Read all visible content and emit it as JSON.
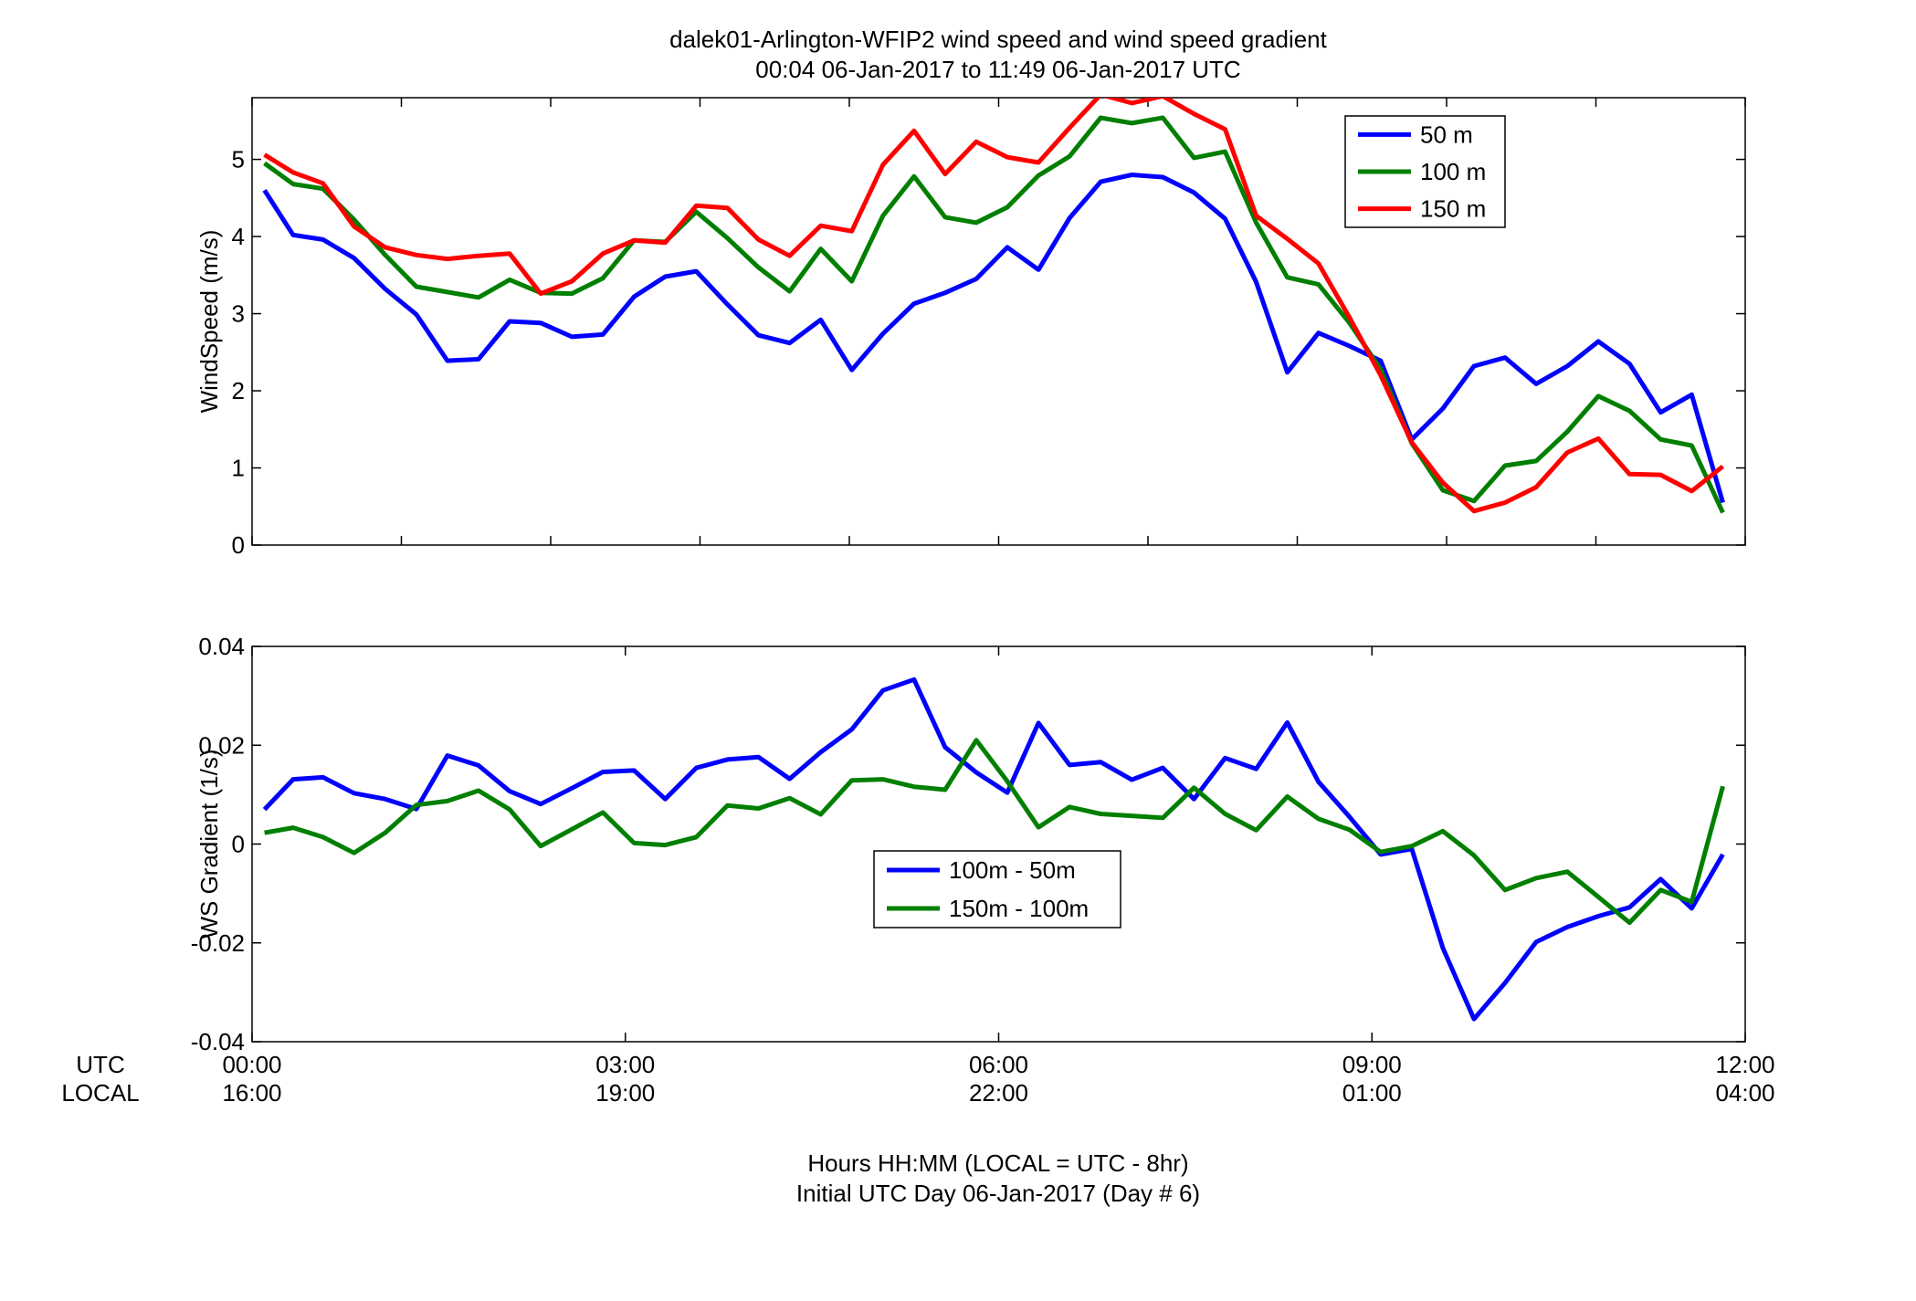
{
  "title_line1": "dalek01-Arlington-WFIP2  wind speed and wind speed gradient",
  "title_line2": "00:04 06-Jan-2017 to 11:49 06-Jan-2017  UTC",
  "row_labels": {
    "utc": "UTC",
    "local": "LOCAL"
  },
  "footer_line1": "Hours HH:MM  (LOCAL = UTC - 8hr)",
  "footer_line2": "Initial UTC Day 06-Jan-2017 (Day # 6)",
  "x_ticks_utc": [
    "00:00",
    "03:00",
    "06:00",
    "09:00",
    "12:00"
  ],
  "x_ticks_local": [
    "16:00",
    "19:00",
    "22:00",
    "01:00",
    "04:00"
  ],
  "chart_data": [
    {
      "type": "line",
      "ylabel": "WindSpeed (m/s)",
      "xlim": [
        0,
        12
      ],
      "ylim": [
        0,
        5.8
      ],
      "yticks": [
        "0",
        "1",
        "2",
        "3",
        "4",
        "5"
      ],
      "ytick_values": [
        0,
        1,
        2,
        3,
        4,
        5
      ],
      "x_minor_ticks": [
        0,
        1.2,
        2.4,
        3.6,
        4.8,
        6,
        7.2,
        8.4,
        9.6,
        10.8,
        12
      ],
      "legend_position": "top-right",
      "x": [
        0.1,
        0.33,
        0.57,
        0.82,
        1.07,
        1.32,
        1.57,
        1.82,
        2.07,
        2.32,
        2.57,
        2.82,
        3.07,
        3.32,
        3.57,
        3.82,
        4.07,
        4.32,
        4.57,
        4.82,
        5.07,
        5.32,
        5.57,
        5.82,
        6.07,
        6.32,
        6.57,
        6.82,
        7.07,
        7.32,
        7.57,
        7.82,
        8.07,
        8.32,
        8.57,
        8.82,
        9.07,
        9.32,
        9.57,
        9.82,
        10.07,
        10.32,
        10.57,
        10.82,
        11.07,
        11.32,
        11.57,
        11.82
      ],
      "series": [
        {
          "name": "50 m",
          "color": "#0000ff",
          "values": [
            4.6,
            4.02,
            3.96,
            3.72,
            3.32,
            2.99,
            2.39,
            2.41,
            2.9,
            2.88,
            2.7,
            2.73,
            3.22,
            3.48,
            3.55,
            3.12,
            2.72,
            2.62,
            2.92,
            2.27,
            2.74,
            3.13,
            3.27,
            3.45,
            3.86,
            3.57,
            4.24,
            4.71,
            4.8,
            4.77,
            4.57,
            4.23,
            3.41,
            2.24,
            2.75,
            2.58,
            2.39,
            1.37,
            1.77,
            2.32,
            2.43,
            2.09,
            2.32,
            2.64,
            2.35,
            1.72,
            1.95,
            0.55
          ]
        },
        {
          "name": "100 m",
          "color": "#007f00",
          "values": [
            4.95,
            4.68,
            4.62,
            4.22,
            3.76,
            3.35,
            3.28,
            3.21,
            3.44,
            3.27,
            3.26,
            3.46,
            3.95,
            3.93,
            4.32,
            3.98,
            3.6,
            3.29,
            3.84,
            3.42,
            4.27,
            4.78,
            4.25,
            4.18,
            4.38,
            4.79,
            5.04,
            5.54,
            5.47,
            5.54,
            5.02,
            5.1,
            4.18,
            3.47,
            3.38,
            2.88,
            2.28,
            1.32,
            0.71,
            0.57,
            1.03,
            1.09,
            1.47,
            1.93,
            1.74,
            1.37,
            1.29,
            0.42
          ]
        },
        {
          "name": "150 m",
          "color": "#ff0000",
          "values": [
            5.06,
            4.83,
            4.69,
            4.13,
            3.86,
            3.76,
            3.71,
            3.75,
            3.78,
            3.26,
            3.42,
            3.78,
            3.95,
            3.92,
            4.4,
            4.37,
            3.96,
            3.75,
            4.14,
            4.07,
            4.93,
            5.37,
            4.81,
            5.23,
            5.03,
            4.96,
            5.41,
            5.84,
            5.73,
            5.82,
            5.59,
            5.39,
            4.27,
            3.97,
            3.65,
            2.95,
            2.2,
            1.33,
            0.81,
            0.44,
            0.55,
            0.75,
            1.2,
            1.38,
            0.92,
            0.91,
            0.7,
            1.02
          ]
        }
      ]
    },
    {
      "type": "line",
      "ylabel": "WS Gradient (1/s)",
      "xlim": [
        0,
        12
      ],
      "ylim": [
        -0.04,
        0.04
      ],
      "yticks": [
        "-0.04",
        "-0.02",
        "0",
        "0.02",
        "0.04"
      ],
      "ytick_values": [
        -0.04,
        -0.02,
        0,
        0.02,
        0.04
      ],
      "x_minor_ticks": [
        0,
        3,
        6,
        9,
        12
      ],
      "legend_position": "center",
      "x": [
        0.1,
        0.33,
        0.57,
        0.82,
        1.07,
        1.32,
        1.57,
        1.82,
        2.07,
        2.32,
        2.57,
        2.82,
        3.07,
        3.32,
        3.57,
        3.82,
        4.07,
        4.32,
        4.57,
        4.82,
        5.07,
        5.32,
        5.57,
        5.82,
        6.07,
        6.32,
        6.57,
        6.82,
        7.07,
        7.32,
        7.57,
        7.82,
        8.07,
        8.32,
        8.57,
        8.82,
        9.07,
        9.32,
        9.57,
        9.82,
        10.07,
        10.32,
        10.57,
        10.82,
        11.07,
        11.32,
        11.57,
        11.82
      ],
      "series": [
        {
          "name": "100m - 50m",
          "color": "#0000ff",
          "values": [
            0.007,
            0.0131,
            0.0135,
            0.0103,
            0.0091,
            0.0071,
            0.0179,
            0.0159,
            0.0107,
            0.0081,
            0.0113,
            0.0146,
            0.0149,
            0.0091,
            0.0154,
            0.0171,
            0.0176,
            0.0132,
            0.0186,
            0.0232,
            0.0311,
            0.0333,
            0.0196,
            0.0145,
            0.0104,
            0.0245,
            0.016,
            0.0166,
            0.013,
            0.0154,
            0.0091,
            0.0174,
            0.0152,
            0.0246,
            0.0126,
            0.0055,
            -0.0021,
            -0.001,
            -0.021,
            -0.0354,
            -0.0281,
            -0.0198,
            -0.0168,
            -0.0146,
            -0.0128,
            -0.0071,
            -0.013,
            -0.0021
          ]
        },
        {
          "name": "150m - 100m",
          "color": "#007f00",
          "values": [
            0.0023,
            0.0033,
            0.0014,
            -0.0018,
            0.0023,
            0.0079,
            0.0087,
            0.0108,
            0.007,
            -0.0004,
            0.003,
            0.0064,
            0.0002,
            -0.0002,
            0.0014,
            0.0078,
            0.0072,
            0.0093,
            0.006,
            0.0129,
            0.0131,
            0.0116,
            0.011,
            0.021,
            0.0127,
            0.0034,
            0.0075,
            0.0061,
            0.0057,
            0.0053,
            0.0114,
            0.0061,
            0.0028,
            0.0096,
            0.0051,
            0.0029,
            -0.0016,
            -0.0004,
            0.0026,
            -0.0023,
            -0.0093,
            -0.0069,
            -0.0056,
            -0.0107,
            -0.0159,
            -0.0093,
            -0.0117,
            0.0117
          ]
        }
      ]
    }
  ]
}
